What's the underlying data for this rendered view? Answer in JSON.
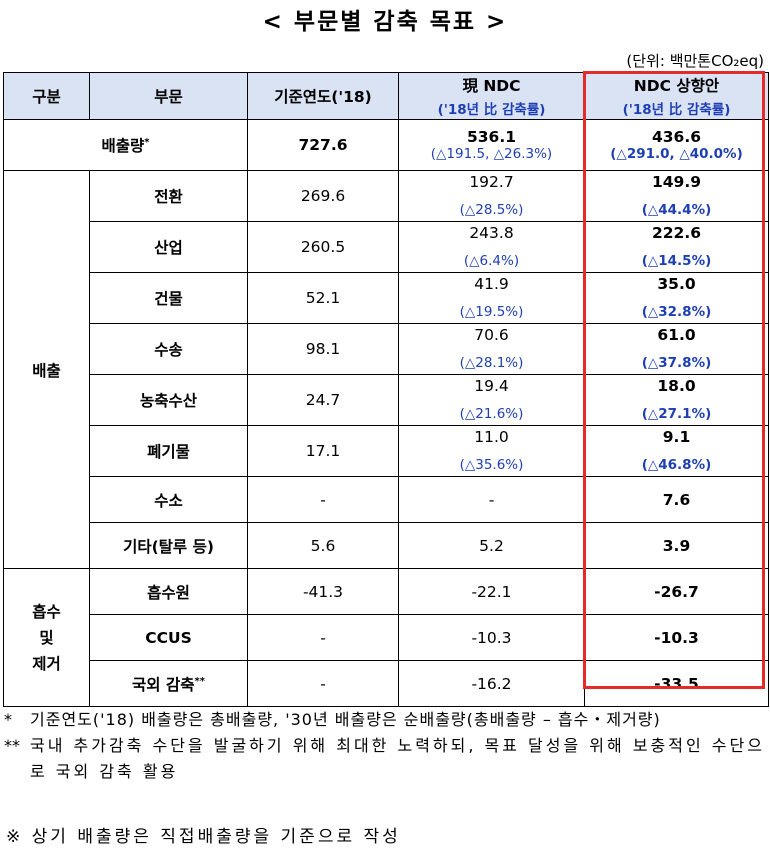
{
  "title": "< 부문별 감축 목표 >",
  "unit": "(단위: 백만톤CO₂eq)",
  "header": {
    "gubun": "구분",
    "bumun": "부문",
    "base": "기준연도('18)",
    "cur": "現 NDC",
    "cur_sub": "('18년 比 감축률)",
    "new": "NDC 상향안",
    "new_sub": "('18년 比 감축률)"
  },
  "total": {
    "label": "배출량",
    "mark": "*",
    "base": "727.6",
    "cur": "536.1",
    "cur_rate": "(△191.5, △26.3%)",
    "new": "436.6",
    "new_rate": "(△291.0, △40.0%)"
  },
  "emission_group": "배출",
  "emission_rows": [
    {
      "name": "전환",
      "base": "269.6",
      "cur": "192.7",
      "cur_rate": "(△28.5%)",
      "new": "149.9",
      "new_rate": "(△44.4%)"
    },
    {
      "name": "산업",
      "base": "260.5",
      "cur": "243.8",
      "cur_rate": "(△6.4%)",
      "new": "222.6",
      "new_rate": "(△14.5%)"
    },
    {
      "name": "건물",
      "base": "52.1",
      "cur": "41.9",
      "cur_rate": "(△19.5%)",
      "new": "35.0",
      "new_rate": "(△32.8%)"
    },
    {
      "name": "수송",
      "base": "98.1",
      "cur": "70.6",
      "cur_rate": "(△28.1%)",
      "new": "61.0",
      "new_rate": "(△37.8%)"
    },
    {
      "name": "농축수산",
      "base": "24.7",
      "cur": "19.4",
      "cur_rate": "(△21.6%)",
      "new": "18.0",
      "new_rate": "(△27.1%)"
    },
    {
      "name": "폐기물",
      "base": "17.1",
      "cur": "11.0",
      "cur_rate": "(△35.6%)",
      "new": "9.1",
      "new_rate": "(△46.8%)"
    },
    {
      "name": "수소",
      "base": "-",
      "cur": "-",
      "new": "7.6"
    },
    {
      "name": "기타(탈루 등)",
      "base": "5.6",
      "cur": "5.2",
      "new": "3.9"
    }
  ],
  "absorb_group": [
    "흡수",
    "및",
    "제거"
  ],
  "absorb_rows": [
    {
      "name": "흡수원",
      "base": "-41.3",
      "cur": "-22.1",
      "new": "-26.7"
    },
    {
      "name": "CCUS",
      "base": "-",
      "cur": "-10.3",
      "new": "-10.3"
    },
    {
      "name": "국외 감축",
      "mark": "**",
      "base": "-",
      "cur": "-16.2",
      "new": "-33.5"
    }
  ],
  "notes": {
    "n1_mark": "*",
    "n1": "기준연도('18) 배출량은 총배출량, '30년 배출량은 순배출량(총배출량 – 흡수・제거량)",
    "n2_mark": "**",
    "n2": "국내 추가감축 수단을 발굴하기 위해 최대한 노력하되, 목표 달성을 위해 보충적인 수단으로 국외 감축 활용",
    "n3": "※ 상기 배출량은 직접배출량을 기준으로 작성"
  },
  "colors": {
    "header_bg": "#dae3f3",
    "rate_blue": "#1f3fb4",
    "highlight_red": "#e52a2a"
  }
}
